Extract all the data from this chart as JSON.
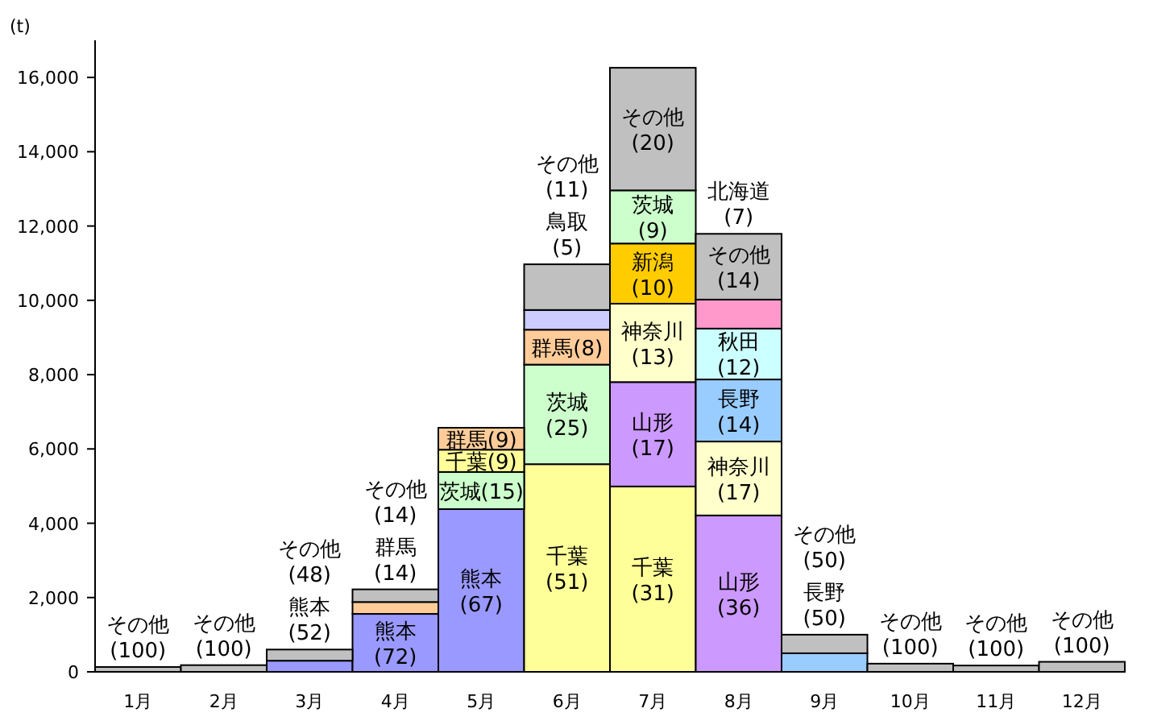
{
  "chart_data": {
    "type": "bar",
    "stacked": true,
    "ylabel": "(t)",
    "categories": [
      "1月",
      "2月",
      "3月",
      "4月",
      "5月",
      "6月",
      "7月",
      "8月",
      "9月",
      "10月",
      "11月",
      "12月"
    ],
    "ylim": [
      0,
      17000
    ],
    "yticks": [
      0,
      {
        "value": 2000,
        "label": "2,000"
      },
      {
        "value": 4000,
        "label": "4,000"
      },
      {
        "value": 6000,
        "label": "6,000"
      },
      {
        "value": 8000,
        "label": "8,000"
      },
      {
        "value": 10000,
        "label": "10,000"
      },
      {
        "value": 12000,
        "label": "12,000"
      },
      {
        "value": 14000,
        "label": "14,000"
      },
      {
        "value": 16000,
        "label": "16,000"
      }
    ],
    "grid": false,
    "series": [
      {
        "values": [
          130,
          180,
          300,
          1560,
          4380,
          5590,
          4990,
          4210,
          500,
          220,
          170,
          270
        ],
        "colors": [
          "#c0c0c0",
          "#c0c0c0",
          "#9999ff",
          "#9999ff",
          "#9999ff",
          "#ffff99",
          "#ffff99",
          "#cc99ff",
          "#99ccff",
          "#c0c0c0",
          "#c0c0c0",
          "#c0c0c0"
        ]
      },
      {
        "values": [
          null,
          null,
          300,
          320,
          1000,
          2680,
          2810,
          1990,
          500,
          null,
          null,
          null
        ],
        "colors": [
          null,
          null,
          "#c0c0c0",
          "#ffcc99",
          "#ccffcc",
          "#ccffcc",
          "#cc99ff",
          "#ffffcc",
          "#c0c0c0",
          null,
          null,
          null
        ]
      },
      {
        "values": [
          null,
          null,
          null,
          340,
          600,
          940,
          2110,
          1670,
          null,
          null,
          null,
          null
        ],
        "colors": [
          null,
          null,
          null,
          "#c0c0c0",
          "#ffff99",
          "#ffcc99",
          "#ffffcc",
          "#99ccff",
          null,
          null,
          null,
          null
        ]
      },
      {
        "values": [
          null,
          null,
          null,
          null,
          590,
          530,
          1620,
          1370,
          null,
          null,
          null,
          null
        ],
        "colors": [
          null,
          null,
          null,
          null,
          "#ffcc99",
          "#ccccff",
          "#ffcc00",
          "#ccffff",
          null,
          null,
          null,
          null
        ]
      },
      {
        "values": [
          null,
          null,
          null,
          null,
          null,
          1230,
          1430,
          780,
          null,
          null,
          null,
          null
        ],
        "colors": [
          null,
          null,
          null,
          null,
          null,
          "#c0c0c0",
          "#ccffcc",
          "#ff99cc",
          null,
          null,
          null,
          null
        ]
      },
      {
        "values": [
          null,
          null,
          null,
          null,
          null,
          null,
          3300,
          1770,
          null,
          null,
          null,
          null
        ],
        "colors": [
          null,
          null,
          null,
          null,
          null,
          null,
          "#c0c0c0",
          "#c0c0c0",
          null,
          null,
          null,
          null
        ]
      }
    ],
    "annotations": [
      {
        "text": "その他\n(100)",
        "x": "1月",
        "y": 130
      },
      {
        "text": "その他\n(100)",
        "x": "2月",
        "y": 180
      },
      {
        "text": "熊本\n(52)",
        "x": "3月",
        "y": 300
      },
      {
        "text": "その他\n(48)",
        "x": "3月",
        "y": 600
      },
      {
        "text": "熊本\n(72)",
        "x": "4月",
        "y": 1560
      },
      {
        "text": "群馬\n(14)",
        "x": "4月",
        "y": 1880
      },
      {
        "text": "その他\n(14)",
        "x": "4月",
        "y": 2220
      },
      {
        "text": "熊本\n(67)",
        "x": "5月",
        "y": 4380
      },
      {
        "text": "茨城(15)",
        "x": "5月",
        "y": 5380
      },
      {
        "text": "千葉(9)",
        "x": "5月",
        "y": 5980
      },
      {
        "text": "群馬(9)",
        "x": "5月",
        "y": 6570
      },
      "千葉\n(51)",
      {
        "text": "茨城\n(25)",
        "x": "6月",
        "y": 8270
      },
      {
        "text": "群馬(8)",
        "x": "6月",
        "y": 9210
      },
      {
        "text": "鳥取\n(5)",
        "x": "6月",
        "y": 9740
      },
      {
        "text": "その他\n(11)",
        "x": "6月",
        "y": 10970
      },
      "千葉\n(31)",
      {
        "text": "山形\n(17)",
        "x": "7月",
        "y": 7800
      },
      {
        "text": "神奈川\n(13)",
        "x": "7月",
        "y": 9910
      },
      {
        "text": "新潟\n(10)",
        "x": "7月",
        "y": 11530
      },
      {
        "text": "茨城\n(9)",
        "x": "7月",
        "y": 12960
      },
      {
        "text": "その他\n(20)",
        "x": "7月",
        "y": 16260
      },
      {
        "text": "山形\n(36)",
        "x": "8月",
        "y": 4210
      },
      {
        "text": "神奈川\n(17)",
        "x": "8月",
        "y": 6200
      },
      {
        "text": "長野\n(14)",
        "x": "8月",
        "y": 7870
      },
      {
        "text": "秋田\n(12)",
        "x": "8月",
        "y": 9240
      },
      "北海道\n(7)",
      {
        "text": "その他\n(14)",
        "x": "8月",
        "y": 11790
      },
      {
        "text": "長野\n(50)",
        "x": "9月",
        "y": 500
      },
      {
        "text": "その他\n(50)",
        "x": "9月",
        "y": 1000
      },
      {
        "text": "その他\n(100)",
        "x": "10月",
        "y": 220
      },
      {
        "text": "その他\n(100)",
        "x": "11月",
        "y": 170
      },
      {
        "text": "その他\n(100)",
        "x": "12月",
        "y": 270
      }
    ]
  }
}
